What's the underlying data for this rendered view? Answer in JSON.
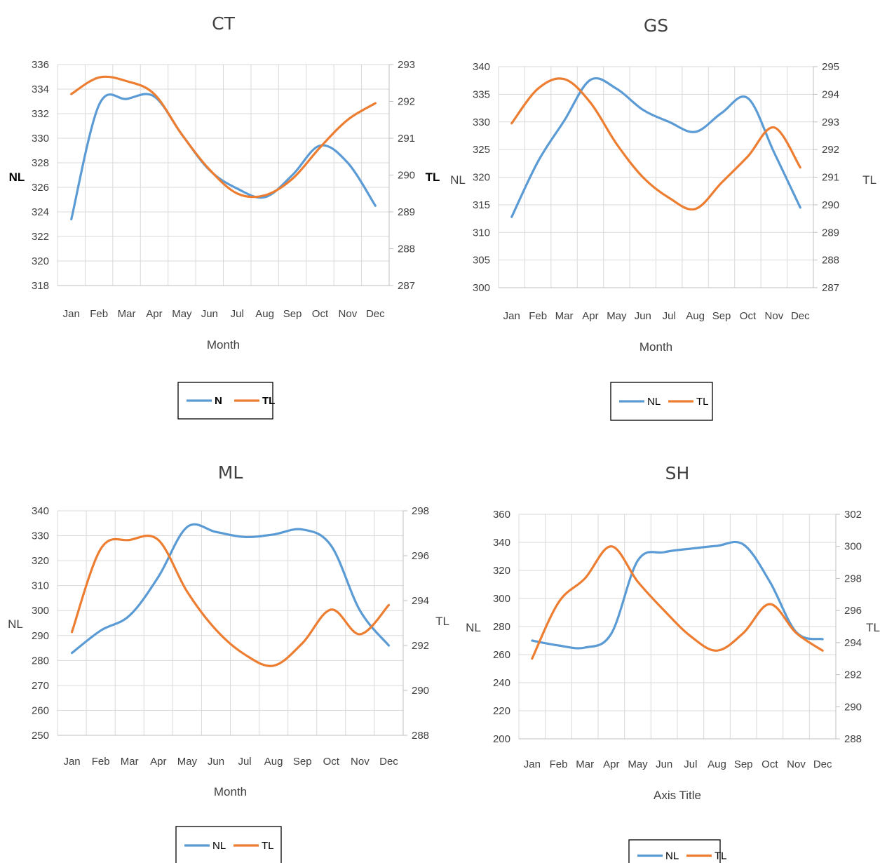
{
  "chart_data": [
    {
      "type": "line",
      "title": "CT",
      "categories": [
        "Jan",
        "Feb",
        "Mar",
        "Apr",
        "May",
        "Jun",
        "Jul",
        "Aug",
        "Sep",
        "Oct",
        "Nov",
        "Dec"
      ],
      "xlabel": "Month",
      "ylabel": "NL",
      "y2label": "TL",
      "ylim": [
        318,
        336
      ],
      "yticks": [
        318,
        320,
        322,
        324,
        326,
        328,
        330,
        332,
        334,
        336
      ],
      "y2lim": [
        287,
        293
      ],
      "y2ticks": [
        287,
        288,
        289,
        290,
        291,
        292,
        293
      ],
      "legend_position": "bottom",
      "series": [
        {
          "name": "N",
          "axis": "left",
          "color": "#5B9BD5",
          "values": [
            323.4,
            332.7,
            333.2,
            333.4,
            330.3,
            327.4,
            325.9,
            325.2,
            327.0,
            329.4,
            328.0,
            324.5
          ]
        },
        {
          "name": "TL",
          "axis": "right",
          "color": "#ED7D31",
          "values": [
            292.2,
            292.65,
            292.55,
            292.2,
            291.1,
            290.15,
            289.5,
            289.45,
            289.9,
            290.75,
            291.5,
            291.95
          ]
        }
      ]
    },
    {
      "type": "line",
      "title": "GS",
      "categories": [
        "Jan",
        "Feb",
        "Mar",
        "Apr",
        "May",
        "Jun",
        "Jul",
        "Aug",
        "Sep",
        "Oct",
        "Nov",
        "Dec"
      ],
      "xlabel": "Month",
      "ylabel": "NL",
      "y2label": "TL",
      "ylim": [
        300,
        340
      ],
      "yticks": [
        300,
        305,
        310,
        315,
        320,
        325,
        330,
        335,
        340
      ],
      "y2lim": [
        287,
        295
      ],
      "y2ticks": [
        287,
        288,
        289,
        290,
        291,
        292,
        293,
        294,
        295
      ],
      "legend_position": "bottom",
      "series": [
        {
          "name": "NL",
          "axis": "left",
          "color": "#5B9BD5",
          "values": [
            312.8,
            322.8,
            330.2,
            337.6,
            336.0,
            332.2,
            330.0,
            328.2,
            331.6,
            334.3,
            324.5,
            314.5
          ]
        },
        {
          "name": "TL",
          "axis": "right",
          "color": "#ED7D31",
          "values": [
            292.95,
            294.2,
            294.55,
            293.7,
            292.2,
            291.0,
            290.25,
            289.85,
            290.8,
            291.75,
            292.8,
            291.35
          ]
        }
      ]
    },
    {
      "type": "line",
      "title": "ML",
      "categories": [
        "Jan",
        "Feb",
        "Mar",
        "Apr",
        "May",
        "Jun",
        "Jul",
        "Aug",
        "Sep",
        "Oct",
        "Nov",
        "Dec"
      ],
      "xlabel": "Month",
      "ylabel": "NL",
      "y2label": "TL",
      "ylim": [
        250,
        340
      ],
      "yticks": [
        250,
        260,
        270,
        280,
        290,
        300,
        310,
        320,
        330,
        340
      ],
      "y2lim": [
        288,
        298
      ],
      "y2ticks": [
        288,
        290,
        292,
        294,
        296,
        298
      ],
      "legend_position": "bottom",
      "series": [
        {
          "name": "NL",
          "axis": "left",
          "color": "#5B9BD5",
          "values": [
            283.0,
            292.0,
            298.0,
            313.5,
            333.5,
            331.5,
            329.5,
            330.5,
            332.5,
            326.0,
            300.0,
            286.0
          ]
        },
        {
          "name": "TL",
          "axis": "right",
          "color": "#ED7D31",
          "values": [
            292.6,
            296.3,
            296.7,
            296.7,
            294.4,
            292.7,
            291.6,
            291.1,
            292.1,
            293.6,
            292.5,
            293.8
          ]
        }
      ]
    },
    {
      "type": "line",
      "title": "SH",
      "categories": [
        "Jan",
        "Feb",
        "Mar",
        "Apr",
        "May",
        "Jun",
        "Jul",
        "Aug",
        "Sep",
        "Oct",
        "Nov",
        "Dec"
      ],
      "xlabel": "Axis Title",
      "ylabel": "NL",
      "y2label": "TL",
      "ylim": [
        200,
        360
      ],
      "yticks": [
        200,
        220,
        240,
        260,
        280,
        300,
        320,
        340,
        360
      ],
      "y2lim": [
        288,
        302
      ],
      "y2ticks": [
        288,
        290,
        292,
        294,
        296,
        298,
        300,
        302
      ],
      "legend_position": "bottom",
      "series": [
        {
          "name": "NL",
          "axis": "left",
          "color": "#5B9BD5",
          "values": [
            270.0,
            266.5,
            265.0,
            275.0,
            327.0,
            333.0,
            335.5,
            337.5,
            338.5,
            312.0,
            276.0,
            271.0
          ]
        },
        {
          "name": "TL",
          "axis": "right",
          "color": "#ED7D31",
          "values": [
            293.0,
            296.5,
            298.0,
            300.0,
            297.8,
            296.0,
            294.4,
            293.5,
            294.6,
            296.4,
            294.6,
            293.5
          ]
        }
      ]
    }
  ]
}
